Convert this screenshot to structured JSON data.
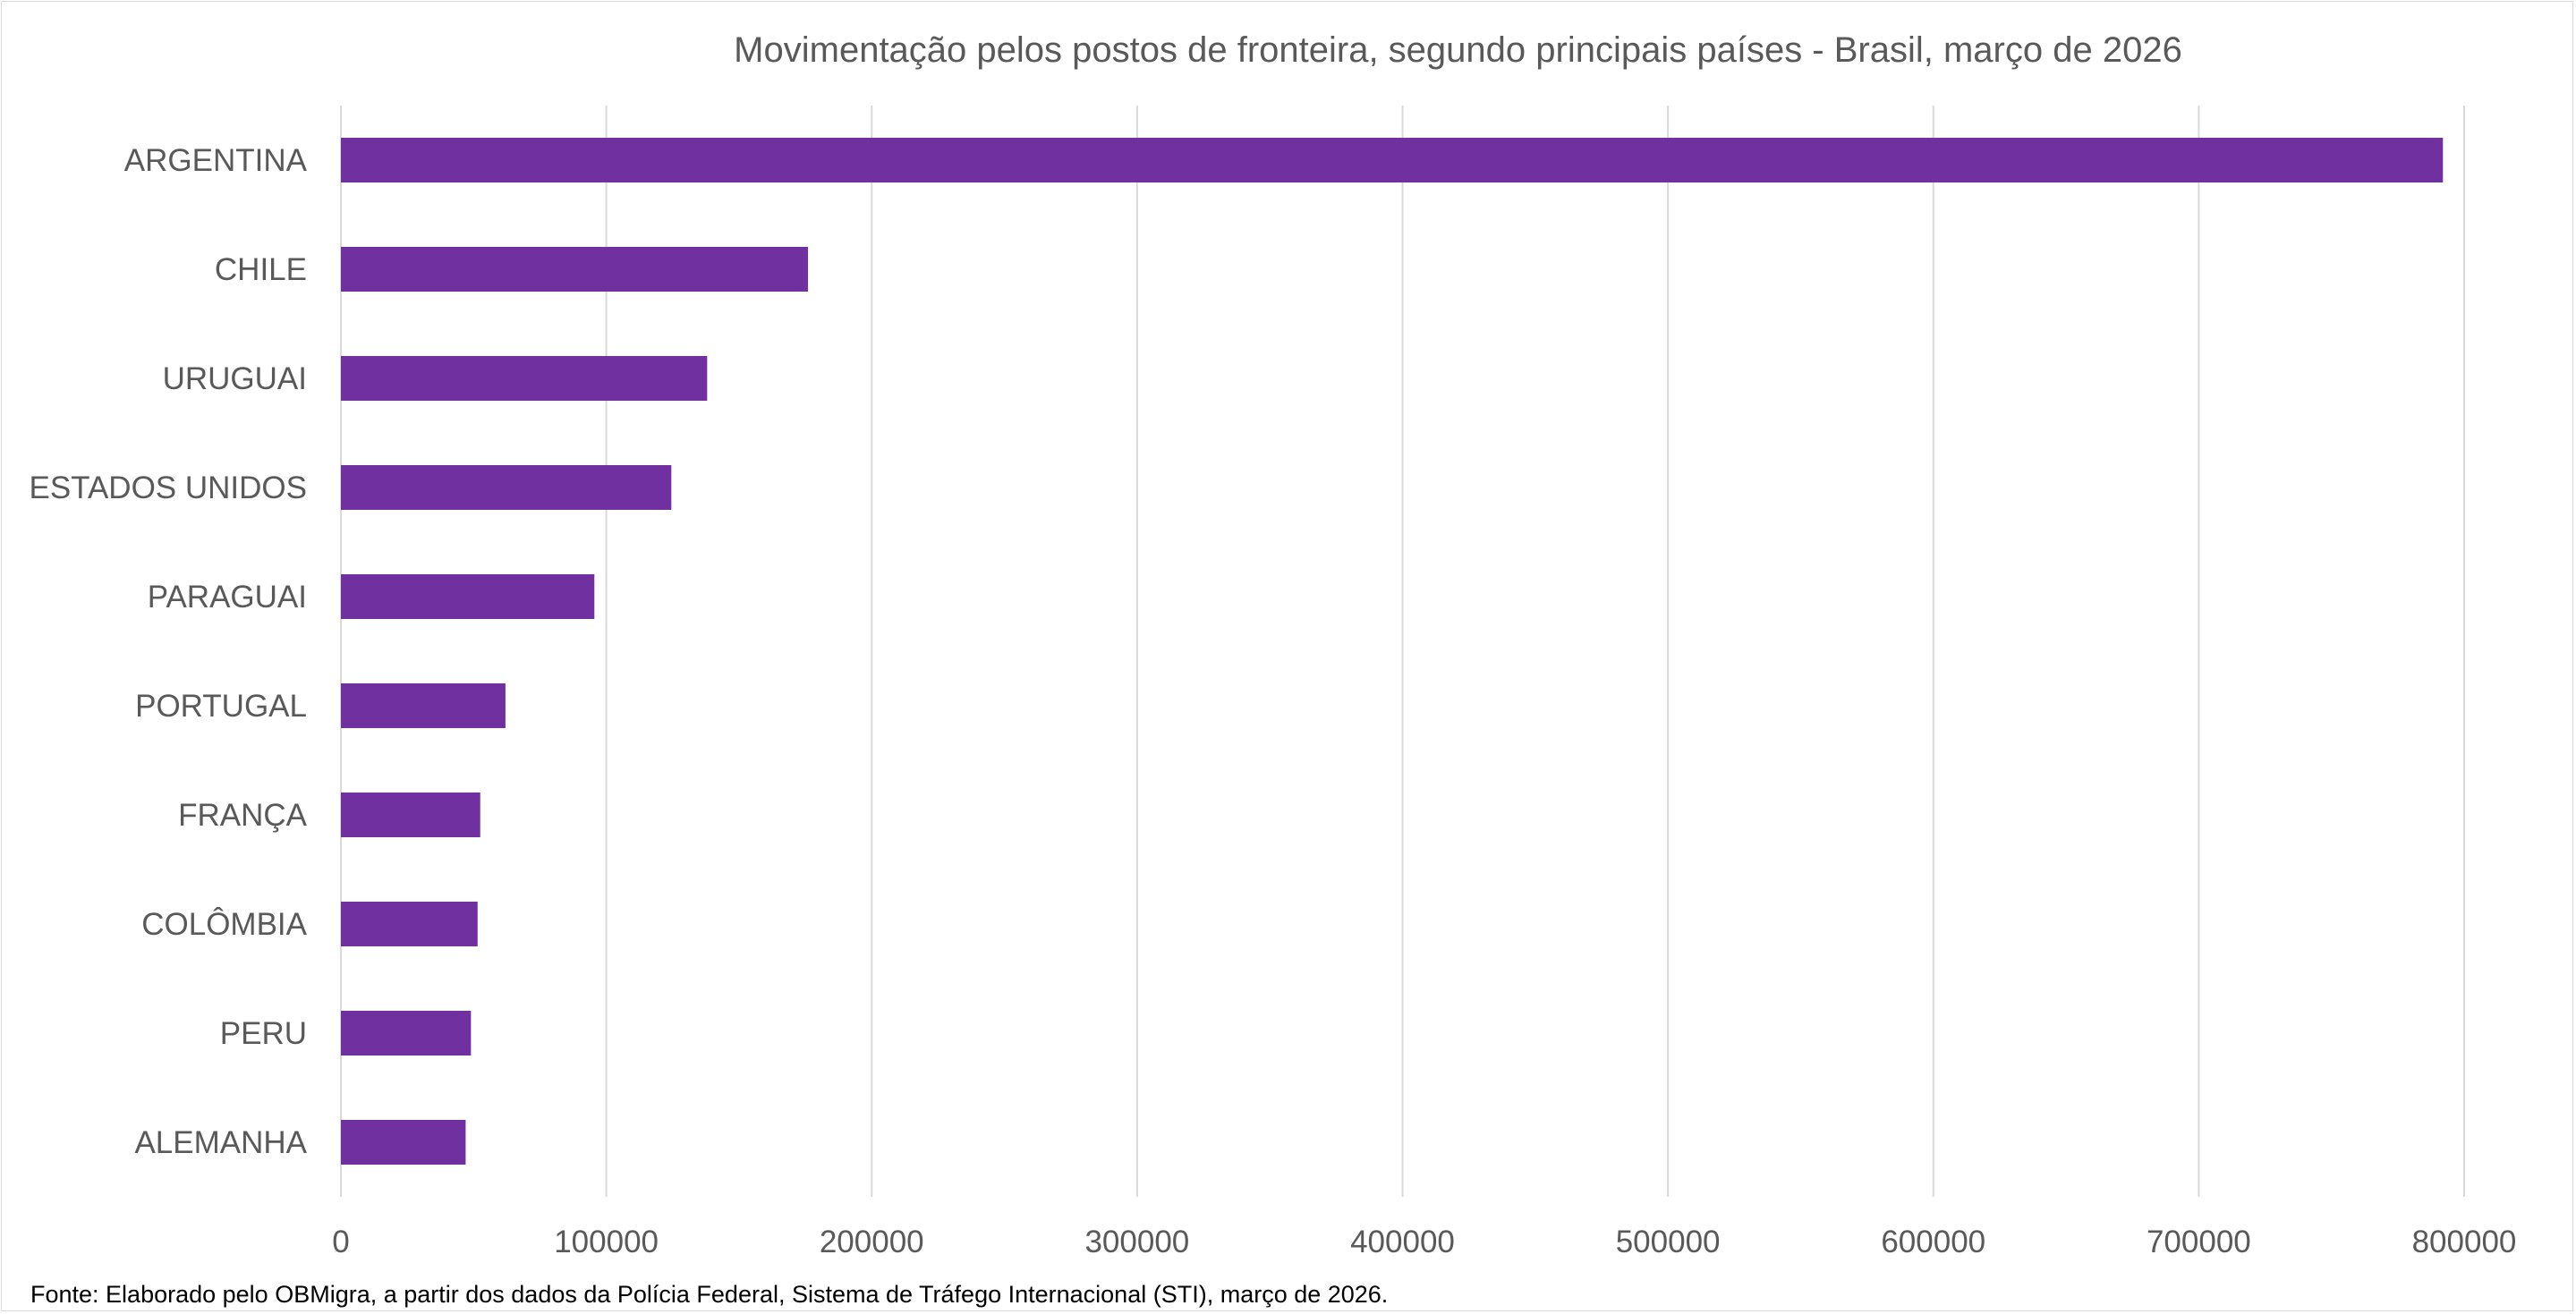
{
  "chart_data": {
    "type": "bar",
    "orientation": "horizontal",
    "title": "Movimentação pelos postos de fronteira, segundo principais países - Brasil, março de 2026",
    "categories": [
      "ARGENTINA",
      "CHILE",
      "URUGUAI",
      "ESTADOS UNIDOS",
      "PARAGUAI",
      "PORTUGAL",
      "FRANÇA",
      "COLÔMBIA",
      "PERU",
      "ALEMANHA"
    ],
    "values": [
      792000,
      176000,
      138000,
      124500,
      95500,
      62000,
      52500,
      51500,
      49000,
      47000
    ],
    "xlim": [
      0,
      800000
    ],
    "xticks": [
      "0",
      "100000",
      "200000",
      "300000",
      "400000",
      "500000",
      "600000",
      "700000",
      "800000"
    ],
    "grid": true,
    "bar_color": "#7030a0"
  },
  "footer": {
    "source": "Fonte: Elaborado pelo OBMigra, a partir dos dados da Polícia Federal, Sistema de Tráfego Internacional (STI), março de 2026."
  }
}
